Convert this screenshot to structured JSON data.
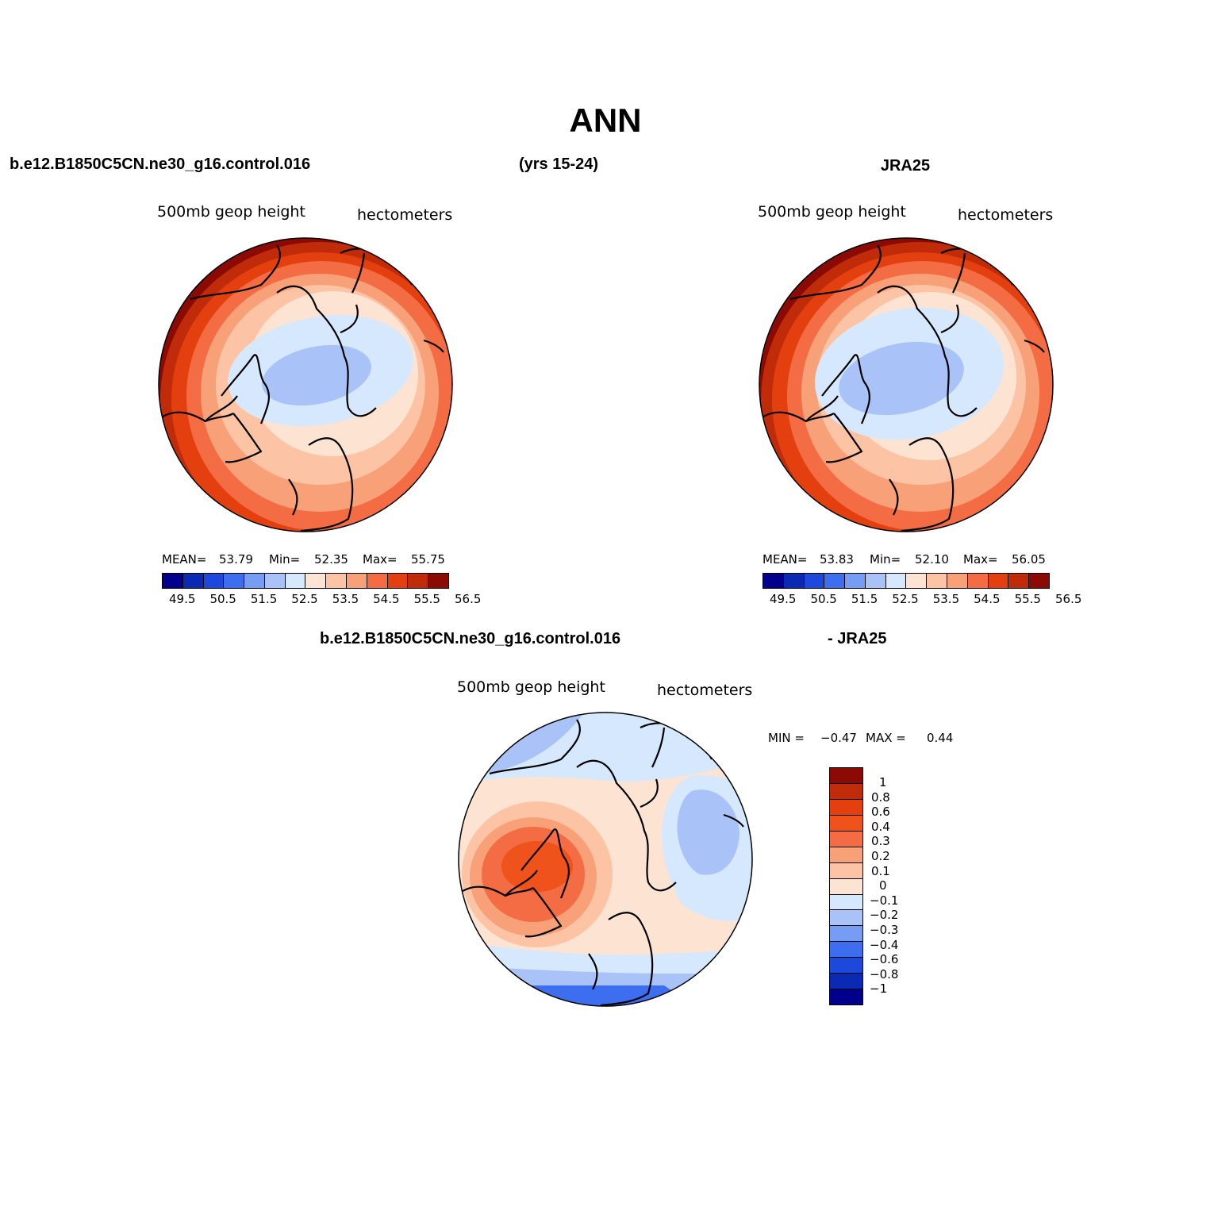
{
  "title": "ANN",
  "top_left_case": "b.e12.B1850C5CN.ne30_g16.control.016",
  "years": "(yrs 15-24)",
  "top_right_case": "JRA25",
  "diff_case": "b.e12.B1850C5CN.ne30_g16.control.016",
  "diff_ref": "- JRA25",
  "var_label": "500mb geop height",
  "unit_label": "hectometers",
  "panel_model": {
    "mean_label": "MEAN=",
    "mean_value": "53.79",
    "min_label": "Min=",
    "min_value": "52.35",
    "max_label": "Max=",
    "max_value": "55.75"
  },
  "panel_obs": {
    "mean_label": "MEAN=",
    "mean_value": "53.83",
    "min_label": "Min=",
    "min_value": "52.10",
    "max_label": "Max=",
    "max_value": "56.05"
  },
  "panel_diff": {
    "min_label": "MIN =",
    "min_value": "−0.47",
    "max_label": "MAX =",
    "max_value": "0.44"
  },
  "abs_colorbar": {
    "ticks": [
      "49.5",
      "50.5",
      "51.5",
      "52.5",
      "53.5",
      "54.5",
      "55.5",
      "56.5"
    ],
    "colors": [
      "#00008c",
      "#0a2ab4",
      "#1c48dc",
      "#3d6ef0",
      "#779cf4",
      "#a9c3f8",
      "#d6e8fd",
      "#fde4d2",
      "#fcc3a5",
      "#f8a078",
      "#f36c43",
      "#e4400f",
      "#c02c0a",
      "#8c0a04"
    ]
  },
  "diff_colorbar": {
    "labels": [
      "1",
      "0.8",
      "0.6",
      "0.4",
      "0.3",
      "0.2",
      "0.1",
      "0",
      "−0.1",
      "−0.2",
      "−0.3",
      "−0.4",
      "−0.6",
      "−0.8",
      "−1"
    ],
    "colors": [
      "#8c0a04",
      "#c02c0a",
      "#e4400f",
      "#f0521c",
      "#f36c43",
      "#f8a078",
      "#fcc3a5",
      "#fde4d2",
      "#d6e8fd",
      "#a9c3f8",
      "#779cf4",
      "#3d6ef0",
      "#1c48dc",
      "#0a2ab4",
      "#00008c"
    ]
  }
}
